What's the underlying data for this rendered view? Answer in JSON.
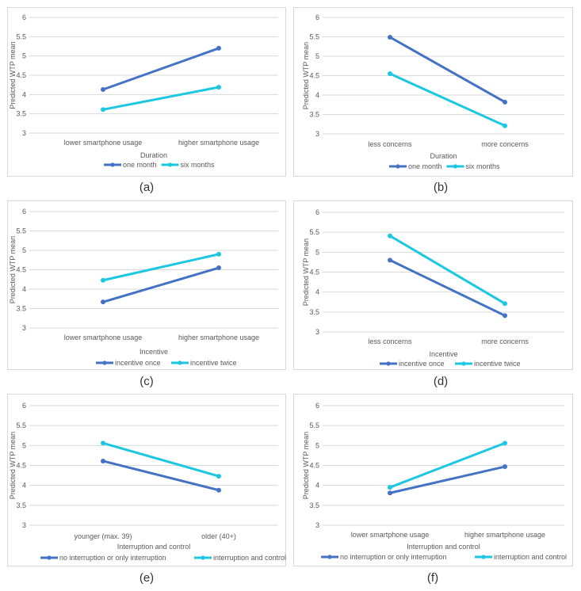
{
  "chart_data": [
    {
      "type": "line",
      "caption": "(a)",
      "title": "Duration",
      "ylabel": "Predicted WTP mean",
      "categories": [
        "lower smartphone usage",
        "higher smartphone usage"
      ],
      "yticks": [
        "3",
        "3.5",
        "4",
        "4.5",
        "5",
        "5.5",
        "6"
      ],
      "ylim": [
        3,
        6
      ],
      "series": [
        {
          "name": "one month",
          "values": [
            4.13,
            5.2
          ],
          "color": "#4472C4"
        },
        {
          "name": "six months",
          "values": [
            3.61,
            4.19
          ],
          "color": "#1CC7E2"
        }
      ]
    },
    {
      "type": "line",
      "caption": "(b)",
      "title": "Duration",
      "ylabel": "Predicted WTP mean",
      "categories": [
        "less concerns",
        "more concerns"
      ],
      "yticks": [
        "3",
        "3.5",
        "4",
        "4.5",
        "5",
        "5.5",
        "6"
      ],
      "ylim": [
        3,
        6
      ],
      "series": [
        {
          "name": "one month",
          "values": [
            5.49,
            3.82
          ],
          "color": "#4472C4"
        },
        {
          "name": "six months",
          "values": [
            4.55,
            3.21
          ],
          "color": "#1CC7E2"
        }
      ]
    },
    {
      "type": "line",
      "caption": "(c)",
      "title": "Incentive",
      "ylabel": "Predicted WTP mean",
      "categories": [
        "lower smartphone usage",
        "higher smartphone usage"
      ],
      "yticks": [
        "3",
        "3.5",
        "4",
        "4.5",
        "5",
        "5.5",
        "6"
      ],
      "ylim": [
        3,
        6
      ],
      "series": [
        {
          "name": "incentive once",
          "values": [
            3.67,
            4.55
          ],
          "color": "#4472C4"
        },
        {
          "name": "incentive twice",
          "values": [
            4.23,
            4.9
          ],
          "color": "#1CC7E2"
        }
      ]
    },
    {
      "type": "line",
      "caption": "(d)",
      "title": "Incentive",
      "ylabel": "Predicted WTP mean",
      "categories": [
        "less concerns",
        "more concerns"
      ],
      "yticks": [
        "3",
        "3.5",
        "4",
        "4.5",
        "5",
        "5.5",
        "6"
      ],
      "ylim": [
        3,
        6
      ],
      "series": [
        {
          "name": "incentive once",
          "values": [
            4.8,
            3.41
          ],
          "color": "#4472C4"
        },
        {
          "name": "incentive twice",
          "values": [
            5.41,
            3.71
          ],
          "color": "#1CC7E2"
        }
      ]
    },
    {
      "type": "line",
      "caption": "(e)",
      "title": "Interruption and control",
      "ylabel": "Predicted WTP mean",
      "categories": [
        "younger (max. 39)",
        "older (40+)"
      ],
      "yticks": [
        "3",
        "3.5",
        "4",
        "4.5",
        "5",
        "5.5",
        "6"
      ],
      "ylim": [
        3,
        6
      ],
      "series": [
        {
          "name": "no interruption or only interruption",
          "values": [
            4.61,
            3.88
          ],
          "color": "#4472C4"
        },
        {
          "name": "interruption and control",
          "values": [
            5.06,
            4.23
          ],
          "color": "#1CC7E2"
        }
      ]
    },
    {
      "type": "line",
      "caption": "(f)",
      "title": "Interruption and control",
      "ylabel": "Predicted WTP mean",
      "categories": [
        "lower smartphone usage",
        "higher smartphone usage"
      ],
      "yticks": [
        "3",
        "3.5",
        "4",
        "4.5",
        "5",
        "5.5",
        "6"
      ],
      "ylim": [
        3,
        6
      ],
      "series": [
        {
          "name": "no interruption or only interruption",
          "values": [
            3.81,
            4.47
          ],
          "color": "#4472C4"
        },
        {
          "name": "interruption and control",
          "values": [
            3.95,
            5.06
          ],
          "color": "#1CC7E2"
        }
      ]
    }
  ]
}
